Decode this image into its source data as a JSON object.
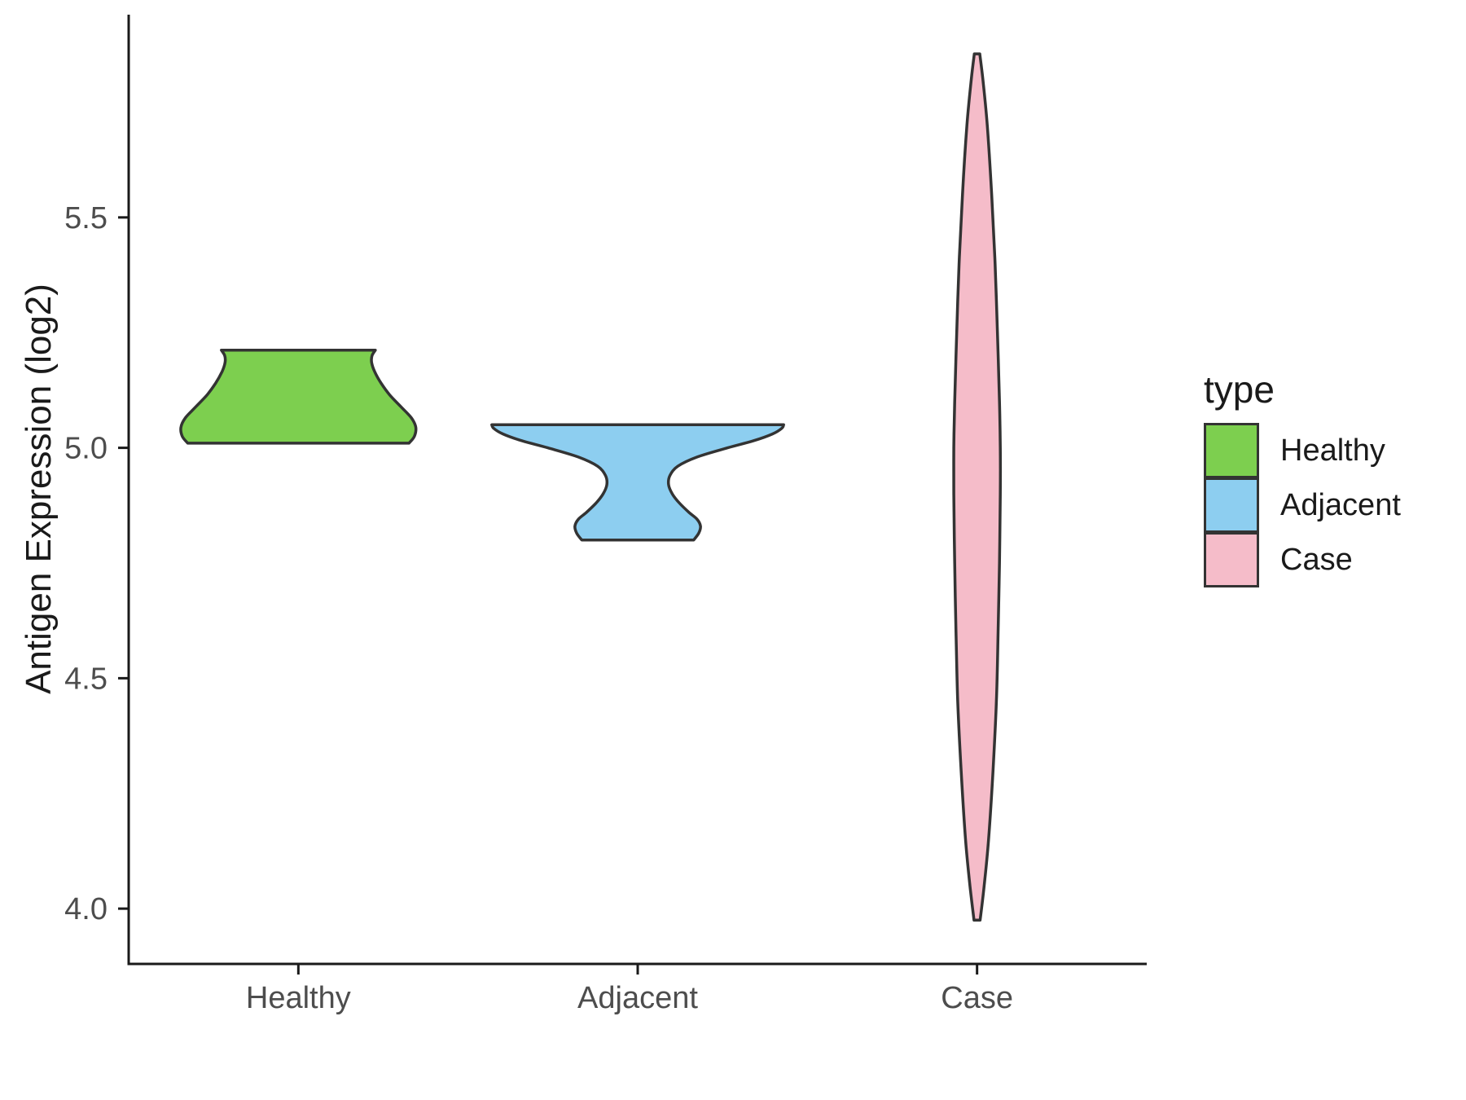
{
  "figure": {
    "background": "#FFFFFF"
  },
  "chart_data": {
    "type": "violin",
    "title": "",
    "xlabel": "",
    "ylabel": "Antigen Expression (log2)",
    "categories": [
      "Healthy",
      "Adjacent",
      "Case"
    ],
    "y_ticks": [
      4.0,
      4.5,
      5.0,
      5.5
    ],
    "y_tick_labels": [
      "4.0",
      "4.5",
      "5.0",
      "5.5"
    ],
    "ylim": [
      3.88,
      5.94
    ],
    "grid": false,
    "legend": {
      "title": "type",
      "position": "right",
      "entries": [
        {
          "label": "Healthy",
          "color": "#7DCF4F"
        },
        {
          "label": "Adjacent",
          "color": "#8DCEF0"
        },
        {
          "label": "Case",
          "color": "#F5BCC9"
        }
      ]
    },
    "style": {
      "outline_color": "#333333",
      "outline_width": 3.5,
      "axis_color": "#1A1A1A",
      "axis_width": 3,
      "tick_label_color": "#4D4D4D",
      "text_color": "#1A1A1A"
    },
    "violins": [
      {
        "category": "Healthy",
        "color": "#7DCF4F",
        "y_range": [
          5.01,
          5.212
        ],
        "profile": [
          [
            5.01,
            0.326
          ],
          [
            5.025,
            0.342
          ],
          [
            5.045,
            0.346
          ],
          [
            5.065,
            0.333
          ],
          [
            5.09,
            0.301
          ],
          [
            5.115,
            0.269
          ],
          [
            5.14,
            0.244
          ],
          [
            5.165,
            0.225
          ],
          [
            5.185,
            0.216
          ],
          [
            5.2,
            0.217
          ],
          [
            5.212,
            0.227
          ]
        ]
      },
      {
        "category": "Adjacent",
        "color": "#8DCEF0",
        "y_range": [
          4.8,
          5.05
        ],
        "profile": [
          [
            4.8,
            0.165
          ],
          [
            4.815,
            0.18
          ],
          [
            4.83,
            0.185
          ],
          [
            4.845,
            0.175
          ],
          [
            4.86,
            0.151
          ],
          [
            4.88,
            0.123
          ],
          [
            4.9,
            0.102
          ],
          [
            4.92,
            0.091
          ],
          [
            4.94,
            0.095
          ],
          [
            4.96,
            0.118
          ],
          [
            4.98,
            0.175
          ],
          [
            5.0,
            0.265
          ],
          [
            5.015,
            0.34
          ],
          [
            5.03,
            0.397
          ],
          [
            5.042,
            0.424
          ],
          [
            5.05,
            0.43
          ]
        ]
      },
      {
        "category": "Case",
        "color": "#F5BCC9",
        "y_range": [
          3.975,
          5.855
        ],
        "profile": [
          [
            3.975,
            0.009
          ],
          [
            4.05,
            0.021
          ],
          [
            4.15,
            0.034
          ],
          [
            4.3,
            0.047
          ],
          [
            4.45,
            0.057
          ],
          [
            4.6,
            0.062
          ],
          [
            4.75,
            0.066
          ],
          [
            4.9,
            0.0685
          ],
          [
            5.0,
            0.0685
          ],
          [
            5.1,
            0.066
          ],
          [
            5.25,
            0.06
          ],
          [
            5.4,
            0.053
          ],
          [
            5.55,
            0.043
          ],
          [
            5.7,
            0.03
          ],
          [
            5.8,
            0.017
          ],
          [
            5.855,
            0.008
          ]
        ]
      }
    ]
  }
}
